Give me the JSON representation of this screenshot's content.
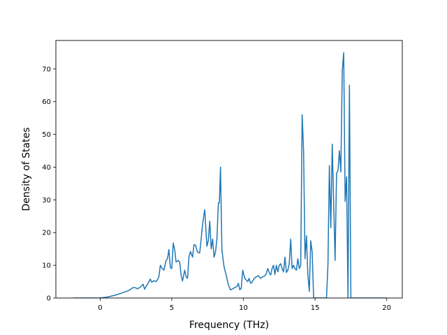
{
  "chart_data": {
    "type": "line",
    "title": "",
    "xlabel": "Frequency (THz)",
    "ylabel": "Density of States",
    "xlim": [
      -3.09,
      21.09
    ],
    "ylim": [
      0,
      78.7
    ],
    "x_ticks": [
      0,
      5,
      10,
      15,
      20
    ],
    "y_ticks": [
      0,
      10,
      20,
      30,
      40,
      50,
      60,
      70
    ],
    "x_tick_labels": [
      "0",
      "5",
      "10",
      "15",
      "20"
    ],
    "y_tick_labels": [
      "0",
      "10",
      "20",
      "30",
      "40",
      "50",
      "60",
      "70"
    ],
    "grid": false,
    "legend": "none",
    "line_color": "#1f77b4",
    "series": [
      {
        "x": [
          -1.9,
          -1.0,
          0.0,
          0.5,
          1.0,
          1.5,
          2.0,
          2.3,
          2.5,
          2.6,
          2.8,
          3.0,
          3.1,
          3.2,
          3.35,
          3.5,
          3.6,
          3.75,
          3.9,
          4.0,
          4.1,
          4.2,
          4.3,
          4.45,
          4.6,
          4.7,
          4.8,
          4.9,
          5.0,
          5.1,
          5.2,
          5.3,
          5.45,
          5.55,
          5.65,
          5.75,
          5.9,
          6.0,
          6.1,
          6.2,
          6.3,
          6.45,
          6.55,
          6.65,
          6.8,
          6.95,
          7.05,
          7.15,
          7.3,
          7.45,
          7.55,
          7.65,
          7.75,
          7.85,
          7.95,
          8.05,
          8.15,
          8.25,
          8.32,
          8.4,
          8.5,
          8.65,
          8.8,
          8.95,
          9.1,
          9.25,
          9.4,
          9.55,
          9.65,
          9.75,
          9.85,
          9.95,
          10.1,
          10.2,
          10.3,
          10.4,
          10.5,
          10.6,
          10.75,
          10.9,
          11.05,
          11.2,
          11.35,
          11.5,
          11.6,
          11.7,
          11.8,
          11.9,
          12.0,
          12.1,
          12.2,
          12.3,
          12.4,
          12.5,
          12.6,
          12.7,
          12.8,
          12.9,
          13.0,
          13.1,
          13.2,
          13.3,
          13.4,
          13.5,
          13.6,
          13.7,
          13.8,
          13.9,
          14.0,
          14.1,
          14.2,
          14.3,
          14.4,
          14.5,
          14.6,
          14.7,
          14.8,
          14.9,
          15.0,
          15.1,
          15.3,
          15.5,
          15.7,
          15.8,
          15.9,
          16.0,
          16.1,
          16.2,
          16.3,
          16.4,
          16.5,
          16.6,
          16.7,
          16.8,
          16.9,
          17.0,
          17.1,
          17.2,
          17.3,
          17.4,
          17.5,
          17.6,
          17.8,
          18.0,
          19.0,
          20.0
        ],
        "values": [
          0,
          0,
          0,
          0.3,
          0.8,
          1.5,
          2.3,
          3.2,
          3.1,
          2.8,
          3.3,
          4.2,
          2.7,
          3.5,
          4.5,
          5.8,
          4.8,
          5.3,
          5.0,
          5.6,
          6.5,
          10.0,
          9.2,
          8.5,
          11.5,
          12.0,
          14.8,
          9.3,
          9.0,
          16.8,
          14.8,
          11.0,
          11.5,
          11.0,
          7.0,
          5.2,
          8.5,
          6.5,
          6.0,
          12.5,
          14.2,
          12.5,
          16.3,
          16.2,
          14.0,
          13.8,
          18.0,
          22.5,
          27.0,
          15.8,
          17.5,
          23.5,
          15.0,
          18.0,
          12.5,
          14.0,
          18.0,
          29.0,
          29.0,
          40.0,
          14.5,
          9.5,
          7.0,
          4.0,
          2.5,
          2.8,
          3.2,
          3.5,
          4.5,
          2.5,
          3.0,
          8.5,
          6.0,
          5.5,
          5.0,
          6.0,
          4.5,
          4.8,
          6.0,
          6.5,
          6.8,
          6.0,
          6.5,
          6.8,
          7.5,
          9.0,
          7.8,
          7.0,
          9.0,
          10.0,
          7.2,
          10.0,
          8.0,
          10.0,
          10.5,
          9.0,
          8.0,
          12.5,
          7.8,
          8.5,
          10.5,
          18.0,
          9.0,
          10.0,
          9.0,
          8.5,
          12.0,
          9.0,
          10.0,
          56.0,
          45.0,
          12.0,
          19.0,
          7.0,
          2.0,
          17.5,
          14.0,
          0,
          0,
          0,
          0,
          0,
          0,
          0,
          10.0,
          40.5,
          21.5,
          47.0,
          29.0,
          11.5,
          38.0,
          39.0,
          45.0,
          38.5,
          69.5,
          75.0,
          29.5,
          37.0,
          0,
          65.0,
          0,
          0,
          0,
          0,
          0,
          0
        ]
      }
    ]
  }
}
